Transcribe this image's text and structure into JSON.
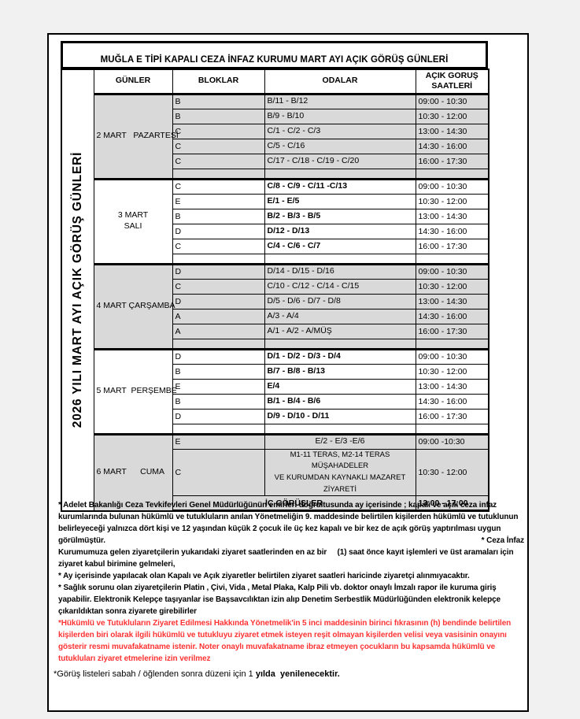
{
  "page": {
    "background": "#f1f1f1",
    "paper_background": "#ffffff",
    "shade_color": "#d9d9d9",
    "border_color": "#000000",
    "red_color": "#ff3333"
  },
  "title": "MUĞLA E TİPİ KAPALI CEZA İNFAZ KURUMU MART AYI AÇIK GÖRÜŞ GÜNLERİ",
  "side_label": "2026 YILI  MART AYI AÇIK GÖRÜŞ GÜNLERİ",
  "table": {
    "columns": [
      {
        "key": "days",
        "label": "GÜNLER"
      },
      {
        "key": "blocks",
        "label": "BLOKLAR"
      },
      {
        "key": "rooms",
        "label": "ODALAR"
      },
      {
        "key": "hours",
        "label": "AÇIK  GORUŞ\nSAATLERİ"
      }
    ],
    "days": [
      {
        "label": "2 MART   PAZARTESİ",
        "label_align": "left",
        "shaded": true,
        "rooms_bold": false,
        "rows": [
          {
            "block": "B",
            "rooms": "B/11 - B/12",
            "hours": "09:00 - 10:30"
          },
          {
            "block": "B",
            "rooms": "B/9 - B/10",
            "hours": "10:30 - 12:00"
          },
          {
            "block": "C",
            "rooms": "C/1 - C/2 - C/3",
            "hours": "13:00 - 14:30"
          },
          {
            "block": "C",
            "rooms": "C/5 - C/16",
            "hours": "14:30 - 16:00"
          },
          {
            "block": "C",
            "rooms": "C/17 - C/18 - C/19 - C/20",
            "hours": "16:00 - 17:30"
          }
        ]
      },
      {
        "label": "3 MART\nSALI",
        "label_align": "center",
        "shaded": false,
        "rooms_bold": true,
        "rows": [
          {
            "block": "C",
            "rooms": "C/8 - C/9 - C/11 -C/13",
            "hours": "09:00 - 10:30"
          },
          {
            "block": "E",
            "rooms": "E/1 - E/5",
            "hours": "10:30 - 12:00"
          },
          {
            "block": "B",
            "rooms": "B/2 - B/3 - B/5",
            "hours": "13:00 - 14:30"
          },
          {
            "block": "D",
            "rooms": "D/12 - D/13",
            "hours": "14:30 - 16:00"
          },
          {
            "block": "C",
            "rooms": "C/4 - C/6 - C/7",
            "hours": "16:00 - 17:30"
          }
        ]
      },
      {
        "label": "4 MART ÇARŞAMBA",
        "label_align": "left",
        "shaded": true,
        "rooms_bold": false,
        "rows": [
          {
            "block": "D",
            "rooms": "D/14 - D/15 - D/16",
            "hours": "09:00 - 10:30"
          },
          {
            "block": "C",
            "rooms": "C/10 - C/12 - C/14 - C/15",
            "hours": "10:30 - 12:00"
          },
          {
            "block": "D",
            "rooms": "D/5 - D/6 - D/7 - D/8",
            "hours": "13:00 - 14:30"
          },
          {
            "block": "A",
            "rooms": "A/3 - A/4",
            "hours": "14:30 - 16:00"
          },
          {
            "block": "A",
            "rooms": "A/1 - A/2 - A/MÜŞ",
            "hours": "16:00 - 17:30"
          }
        ]
      },
      {
        "label": "5 MART  PERŞEMBE",
        "label_align": "left",
        "shaded": false,
        "rooms_bold": true,
        "rows": [
          {
            "block": "D",
            "rooms": "D/1 - D/2 - D/3 - D/4",
            "hours": "09:00 - 10:30"
          },
          {
            "block": "B",
            "rooms": "B/7 - B/8 - B/13",
            "hours": "10:30 - 12:00"
          },
          {
            "block": "E",
            "rooms": "E/4",
            "hours": "13:00 - 14:30"
          },
          {
            "block": "B",
            "rooms": "B/1 - B/4 - B/6",
            "hours": "14:30 - 16:00"
          },
          {
            "block": "D",
            "rooms": "D/9 - D/10 - D/11",
            "hours": "16:00 - 17:30"
          }
        ]
      },
      {
        "label": "6 MART      CUMA",
        "label_align": "left",
        "shaded": true,
        "rooms_bold": false,
        "rooms_align": "center",
        "no_separator": true,
        "rows": [
          {
            "block": "E",
            "rooms": "E/2 - E/3 -E/6",
            "hours": "09:00 -10:30"
          },
          {
            "block": "C",
            "rooms": "M1-11 TERAS, M2-14 TERAS MÜŞAHADELER\nVE KURUMDAN KAYNAKLI MAZARET ZİYARETİ",
            "hours": "10:30 - 12:00",
            "boxed": true,
            "tall": true
          }
        ],
        "summary_row": {
          "label": "İÇ GÖRÜŞLER",
          "hours": "13:00 - 17:00"
        }
      }
    ]
  },
  "footnotes": {
    "lines": [
      {
        "t": "* Adelet Bakanlığı Ceza Tevkifevleri Genel Müdürlüğünün emirleri doğrultusunda ay içerisinde ; kapalı ve açık ceza infaz"
      },
      {
        "t": "kurumlarında bulunan hükümlü ve tutukluların anılan Yönetmeliğin 9. maddesinde belirtilen kişilerden hükümlü ve tutuklunun"
      },
      {
        "t": "belirleyeceği yalnızca dört kişi ve 12 yaşından küçük 2 çocuk ile üç kez kapalı ve bir kez de açık görüş yaptırılması uygun"
      },
      {
        "t": "görülmüştür.",
        "right": "* Ceza İnfaz"
      },
      {
        "t": "Kurumumuza gelen ziyaretçilerin yukarıdaki ziyaret saatlerinden en az bir     (1) saat önce kayıt işlemleri ve üst aramaları için"
      },
      {
        "t": "ziyaret kabul birimine gelmeleri,"
      },
      {
        "t": "* Ay içerisinde yapılacak olan Kapalı ve Açık ziyaretler belirtilen ziyaret saatleri haricinde ziyaretçi alınmıyacaktır."
      },
      {
        "t": "* Sağlık sorunu olan ziyaretçilerin Platin , Çivi, Vida , Metal Plaka, Kalp Pili vb. doktor onaylı İmzalı rapor ile kuruma giriş"
      },
      {
        "t": "yapabilir. Elektronik Kelepçe taşıyanlar ise Başsavcılıktan izin alıp Denetim Serbestlik Müdürlüğünden elektronik kelepçe"
      },
      {
        "t": "çıkarıldıktan sonra ziyarete girebilirler"
      },
      {
        "t": "*Hükümlü ve Tutukluların Ziyaret Edilmesi Hakkında Yönetmelik'in 5 inci maddesinin birinci fıkrasının (h) bendinde belirtilen",
        "red": true
      },
      {
        "t": "kişilerden biri olarak ilgili hükümlü ve tutukluyu ziyaret etmek isteyen reşit olmayan kişilerden velisi veya vasisinin onayını",
        "red": true
      },
      {
        "t": "gösterir resmi muvafakatname istenir. Noter onaylı muvafakatname ibraz etmeyen çocukların bu kapsamda hükümlü ve",
        "red": true
      },
      {
        "t": "tutukluları ziyaret etmelerine izin verilmez",
        "red": true
      }
    ],
    "bottom_note_normal": "*Görüş listeleri sabah / öğlenden sonra düzeni için 1 ",
    "bottom_note_bold": "yılda  yenilenecektir."
  }
}
